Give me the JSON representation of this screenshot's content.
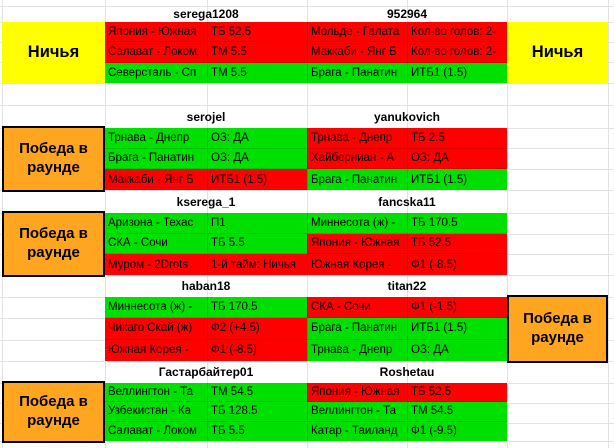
{
  "labels": {
    "draw": "Ничья",
    "round_win": "Победа в раунде"
  },
  "colors": {
    "win": "#00e000",
    "lose": "#ff0000",
    "draw_bg": "#ffff00",
    "round_win_bg": "#ffa51f",
    "gridline": "#e3e3e3"
  },
  "sections": [
    {
      "labels": [
        {
          "side": "left",
          "type": "draw",
          "text": "Ничья"
        },
        {
          "side": "right",
          "type": "draw",
          "text": "Ничья"
        }
      ],
      "users": [
        {
          "name": "serega1208",
          "bets": [
            {
              "match": "Япония - Южная",
              "bet": "ТБ 52.5",
              "result": "lose"
            },
            {
              "match": "Салават - Локом",
              "bet": "ТМ 5.5",
              "result": "lose"
            },
            {
              "match": "Северсталь - Сп",
              "bet": "ТМ 5.5",
              "result": "win"
            }
          ]
        },
        {
          "name": "952964",
          "bets": [
            {
              "match": "Мольде - Галата",
              "bet": "Кол-во голов: 2-",
              "result": "lose"
            },
            {
              "match": "Маккаби - Янг Б",
              "bet": "Кол-во голов: 2-",
              "result": "lose"
            },
            {
              "match": "Брага - Панатин",
              "bet": "ИТБ1 (1.5)",
              "result": "win"
            }
          ]
        }
      ]
    },
    {
      "labels": [
        {
          "side": "left",
          "type": "round_win",
          "text": "Победа в раунде"
        }
      ],
      "users": [
        {
          "name": "serojel",
          "bets": [
            {
              "match": "Трнава - Днепр",
              "bet": "ОЗ: ДА",
              "result": "win"
            },
            {
              "match": "Брага - Панатин",
              "bet": "ОЗ: ДА",
              "result": "win"
            },
            {
              "match": "Маккаби - Янг Б",
              "bet": "ИТБ1 (1.5)",
              "result": "lose"
            }
          ]
        },
        {
          "name": "yanukovich",
          "bets": [
            {
              "match": "Трнава - Днепр",
              "bet": "ТБ 2.5",
              "result": "lose"
            },
            {
              "match": "Хайберниан - А",
              "bet": "ОЗ: ДА",
              "result": "lose"
            },
            {
              "match": "Брага - Панатин",
              "bet": "ИТБ1 (1.5)",
              "result": "win"
            }
          ]
        }
      ]
    },
    {
      "labels": [
        {
          "side": "left",
          "type": "round_win",
          "text": "Победа в раунде"
        }
      ],
      "users": [
        {
          "name": "kserega_1",
          "bets": [
            {
              "match": "Аризона - Техас",
              "bet": "П1",
              "result": "win"
            },
            {
              "match": "СКА - Сочи",
              "bet": "ТБ 5.5",
              "result": "win"
            },
            {
              "match": "Муром - 2Drots",
              "bet": "1-й тайм: Ничья",
              "result": "lose"
            }
          ]
        },
        {
          "name": "fancska11",
          "bets": [
            {
              "match": "Миннесота (ж) -",
              "bet": "ТБ 170.5",
              "result": "win"
            },
            {
              "match": "Япония - Южная",
              "bet": "ТБ 52.5",
              "result": "lose"
            },
            {
              "match": "Южная Корея -",
              "bet": "Ф1 (-8.5)",
              "result": "lose"
            }
          ]
        }
      ]
    },
    {
      "labels": [
        {
          "side": "right",
          "type": "round_win",
          "text": "Победа в раунде"
        }
      ],
      "users": [
        {
          "name": "haban18",
          "bets": [
            {
              "match": "Миннесота (ж) -",
              "bet": "ТБ 170.5",
              "result": "win"
            },
            {
              "match": "Чикаго Скай (ж)",
              "bet": "Ф2 (+4.5)",
              "result": "lose"
            },
            {
              "match": "Южная Корея -",
              "bet": "Ф1 (-8.5)",
              "result": "lose"
            }
          ]
        },
        {
          "name": "titan22",
          "bets": [
            {
              "match": "СКА - Сочи",
              "bet": "Ф1 (-1.5)",
              "result": "lose"
            },
            {
              "match": "Брага - Панатин",
              "bet": "ИТБ1 (1.5)",
              "result": "win"
            },
            {
              "match": "Трнава - Днепр",
              "bet": "ОЗ: ДА",
              "result": "win"
            }
          ]
        }
      ]
    },
    {
      "labels": [
        {
          "side": "left",
          "type": "round_win",
          "text": "Победа в раунде"
        }
      ],
      "users": [
        {
          "name": "Гастарбайтер01",
          "bets": [
            {
              "match": "Веллингтон - Та",
              "bet": "ТМ 54.5",
              "result": "win"
            },
            {
              "match": "Узбекистан - Ка",
              "bet": "ТБ 128.5",
              "result": "win"
            },
            {
              "match": "Салават - Локом",
              "bet": "ТБ 5.5",
              "result": "win"
            }
          ]
        },
        {
          "name": "Roshetau",
          "bets": [
            {
              "match": "Япония - Южная",
              "bet": "ТБ 52.5",
              "result": "lose"
            },
            {
              "match": "Веллингтон - Та",
              "bet": "ТМ 54.5",
              "result": "win"
            },
            {
              "match": "Катар - Таиланд",
              "bet": "Ф1 (-9.5)",
              "result": "win"
            }
          ]
        }
      ]
    }
  ]
}
